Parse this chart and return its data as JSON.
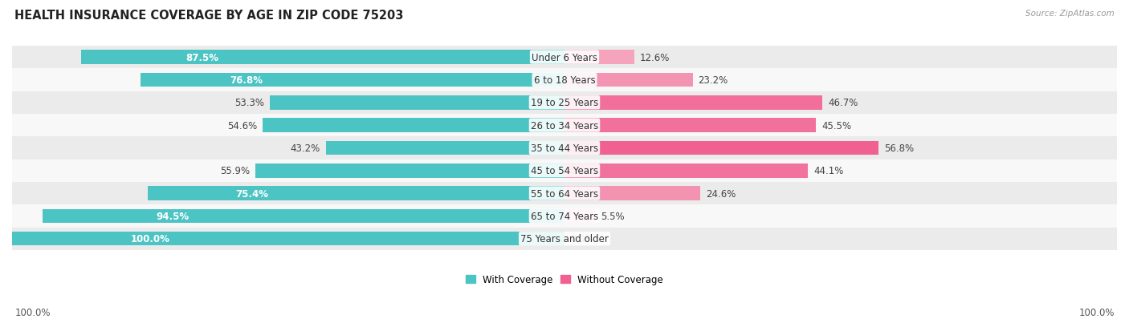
{
  "title": "HEALTH INSURANCE COVERAGE BY AGE IN ZIP CODE 75203",
  "source": "Source: ZipAtlas.com",
  "categories": [
    "Under 6 Years",
    "6 to 18 Years",
    "19 to 25 Years",
    "26 to 34 Years",
    "35 to 44 Years",
    "45 to 54 Years",
    "55 to 64 Years",
    "65 to 74 Years",
    "75 Years and older"
  ],
  "with_coverage": [
    87.5,
    76.8,
    53.3,
    54.6,
    43.2,
    55.9,
    75.4,
    94.5,
    100.0
  ],
  "without_coverage": [
    12.6,
    23.2,
    46.7,
    45.5,
    56.8,
    44.1,
    24.6,
    5.5,
    0.0
  ],
  "color_with": "#4DC4C4",
  "color_without_dark": "#F06090",
  "color_without_light": "#F8B8CC",
  "bg_row_light": "#EBEBEB",
  "bg_row_white": "#F8F8F8",
  "title_fontsize": 10.5,
  "label_fontsize": 8.5,
  "cat_fontsize": 8.5,
  "bar_height": 0.62,
  "legend_with": "With Coverage",
  "legend_without": "Without Coverage",
  "x_axis_left": "100.0%",
  "x_axis_right": "100.0%",
  "white_label_threshold": 60
}
